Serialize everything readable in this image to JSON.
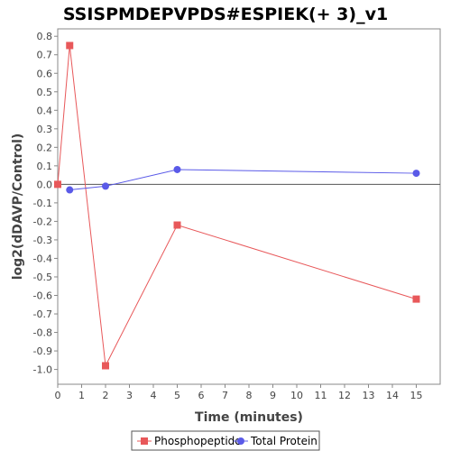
{
  "chart_data": {
    "type": "line",
    "title": "SSISPMDEPVPDS#ESPIEK(+ 3)_v1",
    "xlabel": "Time (minutes)",
    "ylabel": "log2(dDAVP/Control)",
    "xlim": [
      0,
      16
    ],
    "ylim": [
      -1.08,
      0.84
    ],
    "x_ticks": [
      0,
      1,
      2,
      3,
      4,
      5,
      6,
      7,
      8,
      9,
      10,
      11,
      12,
      13,
      14,
      15
    ],
    "y_ticks": [
      -1.0,
      -0.9,
      -0.8,
      -0.7,
      -0.6,
      -0.5,
      -0.4,
      -0.3,
      -0.2,
      -0.1,
      0.0,
      0.1,
      0.2,
      0.3,
      0.4,
      0.5,
      0.6,
      0.7,
      0.8
    ],
    "grid": false,
    "zero_line": true,
    "legend_position": "bottom",
    "series": [
      {
        "name": "Phosphopeptide",
        "color": "#e8585a",
        "marker": "square",
        "x": [
          0,
          0.5,
          2,
          5,
          15
        ],
        "y": [
          0.0,
          0.75,
          -0.98,
          -0.22,
          -0.62
        ]
      },
      {
        "name": "Total Protein",
        "color": "#5a5ae8",
        "marker": "circle",
        "x": [
          0.5,
          2,
          5,
          15
        ],
        "y": [
          -0.03,
          -0.01,
          0.08,
          0.06
        ]
      }
    ]
  }
}
